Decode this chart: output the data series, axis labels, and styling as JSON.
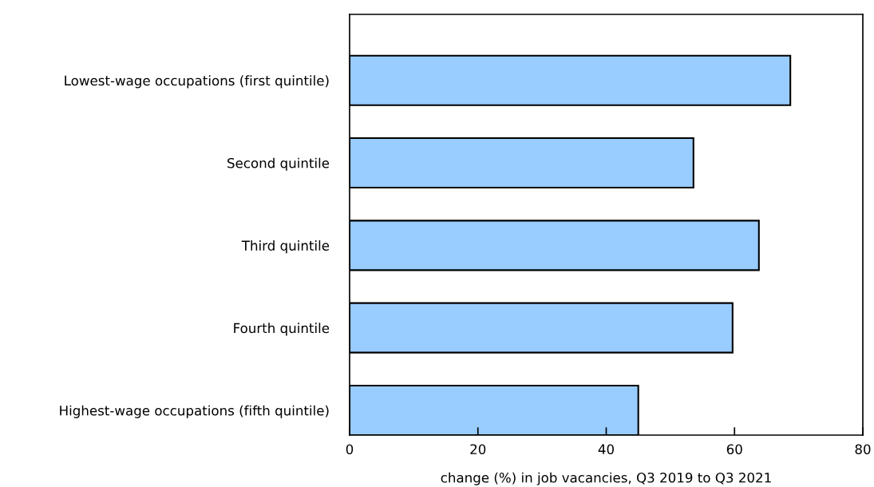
{
  "chart_data": {
    "type": "bar",
    "orientation": "horizontal",
    "categories": [
      "Lowest-wage occupations (first quintile)",
      "Second quintile",
      "Third quintile",
      "Fourth quintile",
      "Highest-wage occupations (fifth quintile)"
    ],
    "values": [
      68.7,
      53.6,
      63.8,
      59.7,
      45.0
    ],
    "color": "#99ccff",
    "xlabel": "change (%) in job vacancies, Q3 2019 to Q3 2021",
    "xlim": [
      0,
      80
    ],
    "xticks": [
      0,
      20,
      40,
      60,
      80
    ],
    "grid": false,
    "legend": false
  }
}
